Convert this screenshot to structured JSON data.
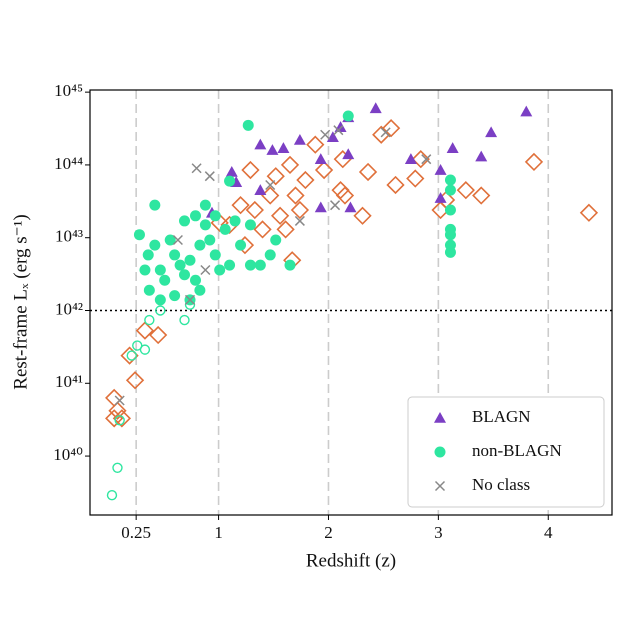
{
  "chart_data": {
    "type": "scatter",
    "xlabel": "Redshift (z)",
    "ylabel": "Rest-frame Lₓ (erg s⁻¹)",
    "xlim": [
      -0.17,
      4.58
    ],
    "ylim": [
      1.55e+39,
      1.07e+45
    ],
    "ylog": true,
    "xticks": [
      0.25,
      1,
      2,
      3,
      4
    ],
    "yticks": [
      {
        "value": 1e+40,
        "label": "10⁴⁰"
      },
      {
        "value": 1e+41,
        "label": "10⁴¹"
      },
      {
        "value": 1e+42,
        "label": "10⁴²"
      },
      {
        "value": 1e+43,
        "label": "10⁴³"
      },
      {
        "value": 1e+44,
        "label": "10⁴⁴"
      },
      {
        "value": 1e+45,
        "label": "10⁴⁵"
      }
    ],
    "xgrid": true,
    "hline": 1e+42,
    "legend": "lower right",
    "series": [
      {
        "marker": "diamond-open",
        "color": "#e0703a",
        "x": [
          0.05,
          0.08,
          0.12,
          0.05,
          0.24,
          0.19,
          0.33,
          0.45,
          1.1,
          1.24,
          1.33,
          1.4,
          1.47,
          1.52,
          1.56,
          1.65,
          1.7,
          1.74,
          1.79,
          1.88,
          1.67,
          1.61,
          2.11,
          2.15,
          1.96,
          2.13,
          2.31,
          2.36,
          2.48,
          2.57,
          2.61,
          2.79,
          2.84,
          3.02,
          3.07,
          3.25,
          3.39,
          3.87,
          4.37,
          1.29,
          1.2,
          1.01
        ],
        "y": [
          6.3e+40,
          4.2e+40,
          3.3e+40,
          3.3e+40,
          1.1e+41,
          2.4e+41,
          5.3e+41,
          4.6e+41,
          1.5e+43,
          7.9e+42,
          2.4e+43,
          1.3e+43,
          3.8e+43,
          7e+43,
          2e+43,
          1e+44,
          3.8e+43,
          2.4e+43,
          6.2e+43,
          1.9e+44,
          4.9e+42,
          1.3e+43,
          4.5e+43,
          3.8e+43,
          8.5e+43,
          1.2e+44,
          2e+43,
          8e+43,
          2.6e+44,
          3.2e+44,
          5.3e+43,
          6.5e+43,
          1.2e+44,
          2.4e+43,
          3.3e+43,
          4.5e+43,
          3.8e+43,
          1.1e+44,
          2.2e+43,
          8.5e+43,
          2.8e+43,
          1.6e+43
        ]
      },
      {
        "marker": "circle-open",
        "color": "#2ee6a0",
        "x": [
          0.03,
          0.08,
          0.1,
          0.26,
          0.33,
          0.37,
          0.69,
          0.74,
          0.47,
          0.21
        ],
        "y": [
          2.9e+39,
          6.9e+39,
          3.1e+40,
          3.3e+41,
          2.9e+41,
          7.4e+41,
          7.4e+41,
          1.2e+42,
          1e+42,
          2.4e+41
        ]
      },
      {
        "name": "BLAGN",
        "marker": "triangle",
        "color": "#7b3fc4",
        "x": [
          2.43,
          3.8,
          2.18,
          3.48,
          2.04,
          2.11,
          1.12,
          1.16,
          1.38,
          1.49,
          1.59,
          1.74,
          1.93,
          2.18,
          2.75,
          3.13,
          3.39,
          3.02,
          1.93,
          2.2,
          1.38,
          0.94,
          3.02
        ],
        "y": [
          6e+44,
          5.4e+44,
          4.5e+44,
          2.8e+44,
          2.4e+44,
          3.3e+44,
          8e+43,
          5.8e+43,
          1.9e+44,
          1.6e+44,
          1.7e+44,
          2.2e+44,
          1.2e+44,
          1.4e+44,
          1.2e+44,
          1.7e+44,
          1.3e+44,
          8.5e+43,
          2.6e+43,
          2.6e+43,
          4.5e+43,
          2.2e+43,
          3.5e+43
        ]
      },
      {
        "name": "non-BLAGN",
        "marker": "circle",
        "color": "#2ee6a0",
        "x": [
          0.28,
          0.42,
          0.33,
          0.37,
          0.47,
          0.51,
          0.56,
          0.6,
          0.65,
          0.69,
          0.74,
          0.79,
          0.83,
          0.88,
          0.92,
          0.97,
          1.01,
          0.83,
          0.74,
          0.47,
          0.6,
          0.69,
          0.79,
          0.88,
          0.97,
          1.06,
          1.15,
          1.2,
          1.29,
          1.38,
          1.47,
          1.52,
          1.65,
          1.29,
          1.1,
          0.42,
          0.36,
          3.11,
          3.11,
          3.11,
          3.11,
          3.11,
          3.11,
          3.11,
          2.18,
          1.27,
          1.1
        ],
        "y": [
          1.1e+43,
          2.8e+43,
          3.6e+42,
          1.9e+42,
          3.6e+42,
          2.6e+42,
          9.3e+42,
          1.6e+42,
          4.2e+42,
          3.1e+42,
          4.9e+42,
          2.6e+42,
          7.9e+42,
          1.5e+43,
          9.3e+42,
          5.8e+42,
          3.6e+42,
          1.9e+42,
          1.4e+42,
          1.4e+42,
          5.8e+42,
          1.7e+43,
          2e+43,
          2.8e+43,
          2e+43,
          1.3e+43,
          1.7e+43,
          7.9e+42,
          1.5e+43,
          4.2e+42,
          5.8e+42,
          9.3e+42,
          4.2e+42,
          4.2e+42,
          4.2e+42,
          7.9e+42,
          5.8e+42,
          6.2e+43,
          4.5e+43,
          1.3e+43,
          1.1e+43,
          7.9e+42,
          6.3e+42,
          2.4e+43,
          4.7e+44,
          3.5e+44,
          6e+43
        ]
      },
      {
        "name": "No class",
        "marker": "x",
        "color": "#888888",
        "x": [
          0.8,
          0.92,
          0.63,
          0.88,
          0.74,
          1.97,
          2.09,
          2.06,
          2.52,
          2.89,
          0.1,
          1.47,
          1.74
        ],
        "y": [
          9e+43,
          7e+43,
          9.3e+42,
          3.6e+42,
          1.4e+42,
          2.6e+44,
          3e+44,
          2.8e+43,
          2.8e+44,
          1.2e+44,
          5.8e+40,
          5.3e+43,
          1.7e+43
        ]
      }
    ]
  }
}
